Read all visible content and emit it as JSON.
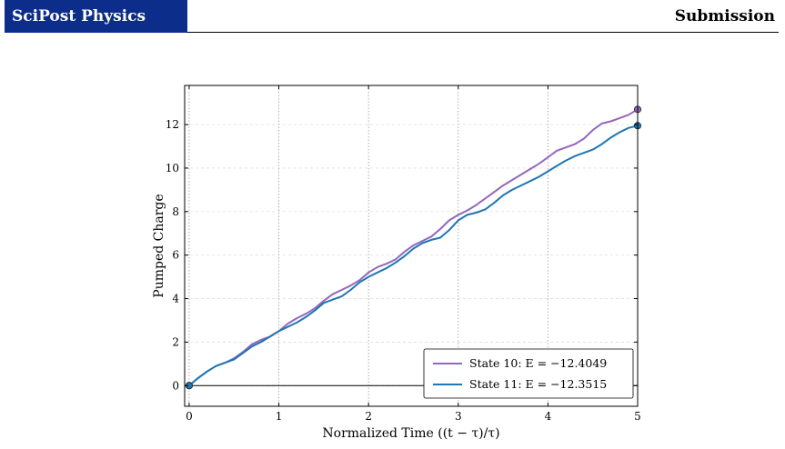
{
  "header": {
    "journal": "SciPost Physics",
    "label": "Submission"
  },
  "chart_data": {
    "type": "line",
    "title": "",
    "xlabel": "Normalized Time ((t − τ)/τ)",
    "ylabel": "Pumped Charge",
    "xlim": [
      -0.05,
      5.0
    ],
    "ylim": [
      -0.95,
      13.8
    ],
    "xticks": [
      0,
      1,
      2,
      3,
      4,
      5
    ],
    "yticks": [
      0,
      2,
      4,
      6,
      8,
      10,
      12
    ],
    "grid": "dotted vertical at x ticks, faint dashed horizontal at y ticks",
    "legend_position": "lower-right",
    "reference_line_y": 0,
    "series": [
      {
        "name": "State 10: E = −12.4049",
        "color": "#9467bd",
        "x": [
          0,
          0.1,
          0.2,
          0.3,
          0.4,
          0.5,
          0.6,
          0.7,
          0.8,
          0.9,
          1.0,
          1.1,
          1.2,
          1.3,
          1.4,
          1.5,
          1.6,
          1.7,
          1.8,
          1.9,
          2.0,
          2.1,
          2.2,
          2.3,
          2.4,
          2.5,
          2.6,
          2.7,
          2.8,
          2.9,
          3.0,
          3.1,
          3.2,
          3.3,
          3.4,
          3.5,
          3.6,
          3.7,
          3.8,
          3.9,
          4.0,
          4.1,
          4.2,
          4.3,
          4.4,
          4.5,
          4.6,
          4.7,
          4.8,
          4.9,
          5.0
        ],
        "y": [
          0,
          0.35,
          0.65,
          0.9,
          1.05,
          1.25,
          1.55,
          1.9,
          2.1,
          2.25,
          2.5,
          2.85,
          3.1,
          3.3,
          3.55,
          3.9,
          4.2,
          4.4,
          4.6,
          4.85,
          5.2,
          5.45,
          5.6,
          5.8,
          6.15,
          6.45,
          6.65,
          6.85,
          7.2,
          7.6,
          7.85,
          8.05,
          8.3,
          8.6,
          8.9,
          9.2,
          9.45,
          9.7,
          9.95,
          10.2,
          10.5,
          10.8,
          10.95,
          11.1,
          11.35,
          11.75,
          12.05,
          12.15,
          12.3,
          12.45,
          12.7
        ]
      },
      {
        "name": "State 11: E = −12.3515",
        "color": "#1f77b4",
        "x": [
          0,
          0.1,
          0.2,
          0.3,
          0.4,
          0.5,
          0.6,
          0.7,
          0.8,
          0.9,
          1.0,
          1.1,
          1.2,
          1.3,
          1.4,
          1.5,
          1.6,
          1.7,
          1.8,
          1.9,
          2.0,
          2.1,
          2.2,
          2.3,
          2.4,
          2.5,
          2.6,
          2.7,
          2.8,
          2.9,
          3.0,
          3.1,
          3.2,
          3.3,
          3.4,
          3.5,
          3.6,
          3.7,
          3.8,
          3.9,
          4.0,
          4.1,
          4.2,
          4.3,
          4.4,
          4.5,
          4.6,
          4.7,
          4.8,
          4.9,
          5.0
        ],
        "y": [
          0,
          0.35,
          0.65,
          0.9,
          1.05,
          1.2,
          1.5,
          1.8,
          2.0,
          2.25,
          2.5,
          2.7,
          2.9,
          3.15,
          3.45,
          3.8,
          3.95,
          4.1,
          4.4,
          4.75,
          5.0,
          5.2,
          5.4,
          5.65,
          5.95,
          6.3,
          6.55,
          6.7,
          6.8,
          7.15,
          7.6,
          7.85,
          7.95,
          8.1,
          8.4,
          8.75,
          9.0,
          9.2,
          9.4,
          9.6,
          9.85,
          10.1,
          10.35,
          10.55,
          10.7,
          10.85,
          11.1,
          11.4,
          11.65,
          11.85,
          11.95
        ]
      }
    ]
  }
}
